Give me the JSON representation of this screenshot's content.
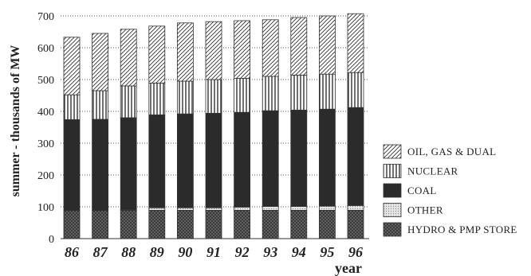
{
  "chart_data": {
    "type": "bar",
    "stacked": true,
    "categories": [
      "86",
      "87",
      "88",
      "89",
      "90",
      "91",
      "92",
      "93",
      "94",
      "95",
      "96"
    ],
    "xlabel": "year",
    "ylabel": "summer - thousands of MW",
    "ylim": [
      0,
      700
    ],
    "yticks": [
      0,
      100,
      200,
      300,
      400,
      500,
      600,
      700
    ],
    "grid": true,
    "legend_position": "right",
    "series": [
      {
        "name": "HYDRO & PMP STORE",
        "pattern": "crosshatch-dark",
        "color": "#555555",
        "values": [
          88,
          88,
          89,
          89,
          89,
          89,
          89,
          89,
          89,
          89,
          89
        ]
      },
      {
        "name": "OTHER",
        "pattern": "light-dots",
        "color": "#d9d9d9",
        "values": [
          0,
          0,
          2,
          8,
          8,
          8,
          10,
          12,
          12,
          13,
          15
        ]
      },
      {
        "name": "COAL",
        "pattern": "solid-dark",
        "color": "#2b2b2b",
        "values": [
          286,
          287,
          289,
          292,
          295,
          297,
          298,
          301,
          303,
          305,
          308
        ]
      },
      {
        "name": "NUCLEAR",
        "pattern": "vertical-stripes",
        "color": "#ffffff",
        "values": [
          78,
          90,
          100,
          100,
          103,
          106,
          107,
          108,
          110,
          110,
          110
        ]
      },
      {
        "name": "OIL, GAS & DUAL",
        "pattern": "diagonal-stripes",
        "color": "#ffffff",
        "values": [
          181,
          180,
          178,
          179,
          183,
          182,
          181,
          178,
          181,
          183,
          185
        ]
      }
    ]
  }
}
